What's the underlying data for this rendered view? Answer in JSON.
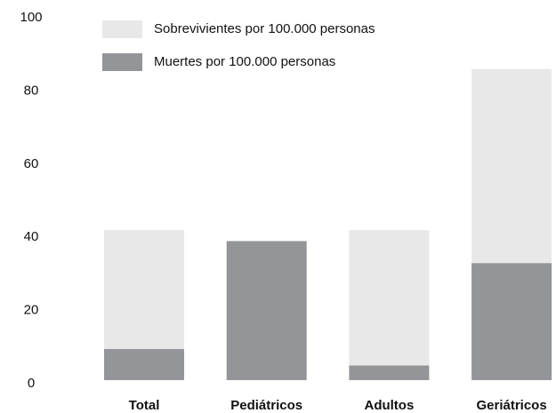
{
  "chart_data": {
    "type": "stacked_bar",
    "categories": [
      "Total",
      "Pediátricos",
      "Adultos",
      "Geriátricos"
    ],
    "series": [
      {
        "name": "Sobrevivientes por 100.000 personas",
        "color": "#e8e8e8",
        "values": [
          32.5,
          0,
          37,
          53
        ]
      },
      {
        "name": "Muertes por 100.000 personas",
        "color": "#939598",
        "values": [
          8.5,
          38,
          4,
          32
        ]
      }
    ],
    "ylim": [
      0,
      100
    ],
    "yticks": [
      0,
      20,
      40,
      60,
      80,
      100
    ],
    "grid": false
  }
}
